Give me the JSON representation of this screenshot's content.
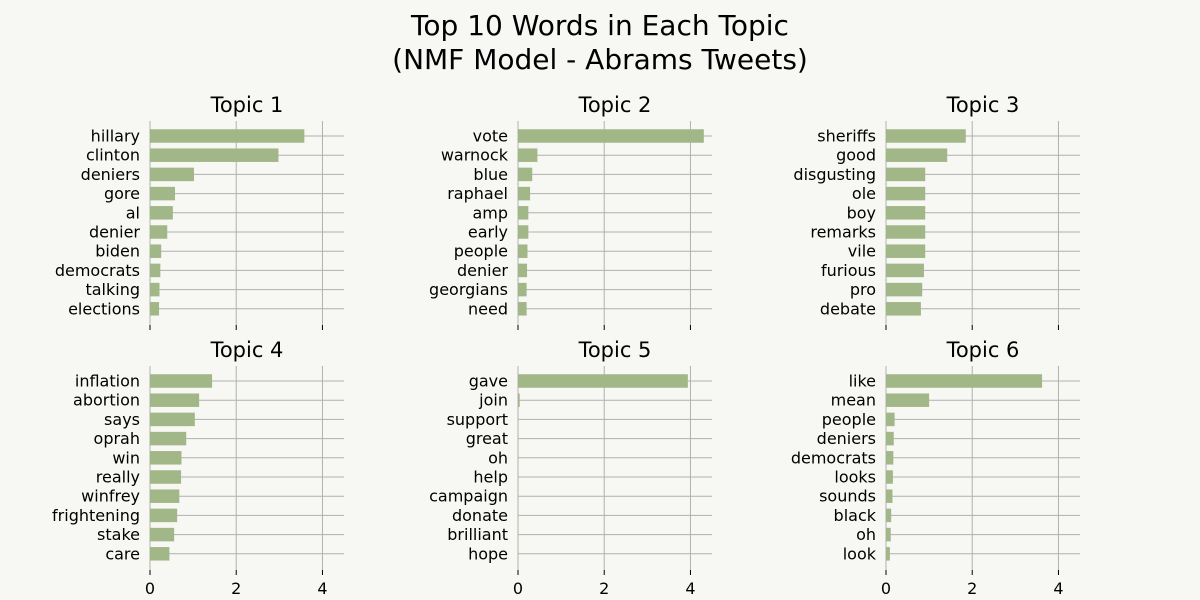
{
  "title_line1": "Top 10 Words in Each Topic",
  "title_line2": "(NMF Model - Abrams Tweets)",
  "colors": {
    "bar": "#a2b788",
    "grid": "#b0b0b0",
    "background": "#f7f7f3"
  },
  "chart_data": [
    {
      "type": "bar",
      "orientation": "horizontal",
      "title": "Topic 1",
      "xlim": [
        0,
        4.5
      ],
      "xticks": [
        0,
        2,
        4
      ],
      "grid": true,
      "categories": [
        "hillary",
        "clinton",
        "deniers",
        "gore",
        "al",
        "denier",
        "biden",
        "democrats",
        "talking",
        "elections"
      ],
      "values": [
        3.58,
        2.98,
        1.02,
        0.58,
        0.53,
        0.4,
        0.26,
        0.24,
        0.22,
        0.21
      ]
    },
    {
      "type": "bar",
      "orientation": "horizontal",
      "title": "Topic 2",
      "xlim": [
        0,
        4.5
      ],
      "xticks": [
        0,
        2,
        4
      ],
      "grid": true,
      "categories": [
        "vote",
        "warnock",
        "blue",
        "raphael",
        "amp",
        "early",
        "people",
        "denier",
        "georgians",
        "need"
      ],
      "values": [
        4.31,
        0.45,
        0.33,
        0.28,
        0.24,
        0.24,
        0.22,
        0.21,
        0.2,
        0.2
      ]
    },
    {
      "type": "bar",
      "orientation": "horizontal",
      "title": "Topic 3",
      "xlim": [
        0,
        4.5
      ],
      "xticks": [
        0,
        2,
        4
      ],
      "grid": true,
      "categories": [
        "sheriffs",
        "good",
        "disgusting",
        "ole",
        "boy",
        "remarks",
        "vile",
        "furious",
        "pro",
        "debate"
      ],
      "values": [
        1.85,
        1.42,
        0.91,
        0.91,
        0.91,
        0.91,
        0.91,
        0.88,
        0.84,
        0.81
      ]
    },
    {
      "type": "bar",
      "orientation": "horizontal",
      "title": "Topic 4",
      "xlim": [
        0,
        4.5
      ],
      "xticks": [
        0,
        2,
        4
      ],
      "grid": true,
      "categories": [
        "inflation",
        "abortion",
        "says",
        "oprah",
        "win",
        "really",
        "winfrey",
        "frightening",
        "stake",
        "care"
      ],
      "values": [
        1.44,
        1.14,
        1.04,
        0.84,
        0.73,
        0.72,
        0.68,
        0.63,
        0.56,
        0.45
      ]
    },
    {
      "type": "bar",
      "orientation": "horizontal",
      "title": "Topic 5",
      "xlim": [
        0,
        4.5
      ],
      "xticks": [
        0,
        2,
        4
      ],
      "grid": true,
      "categories": [
        "gave",
        "join",
        "support",
        "great",
        "oh",
        "help",
        "campaign",
        "donate",
        "brilliant",
        "hope"
      ],
      "values": [
        3.94,
        0.04,
        0.01,
        0.01,
        0.01,
        0.01,
        0.01,
        0.01,
        0.01,
        0.01
      ]
    },
    {
      "type": "bar",
      "orientation": "horizontal",
      "title": "Topic 6",
      "xlim": [
        0,
        4.5
      ],
      "xticks": [
        0,
        2,
        4
      ],
      "grid": true,
      "categories": [
        "like",
        "mean",
        "people",
        "deniers",
        "democrats",
        "looks",
        "sounds",
        "black",
        "oh",
        "look"
      ],
      "values": [
        3.62,
        1.0,
        0.2,
        0.18,
        0.17,
        0.16,
        0.15,
        0.12,
        0.11,
        0.09
      ]
    }
  ]
}
